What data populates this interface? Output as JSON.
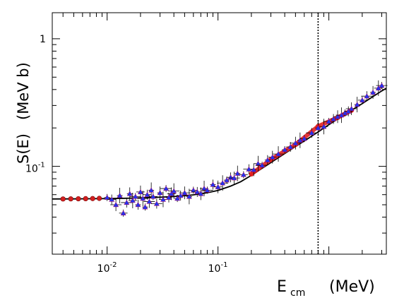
{
  "chart_data": {
    "type": "scatter",
    "title": "",
    "xlabel": {
      "main": "E",
      "sub": "cm",
      "unit": "(MeV)"
    },
    "ylabel": {
      "main": "S(E)",
      "unit": "(MeV b)"
    },
    "xscale": "log",
    "yscale": "log",
    "xlim": [
      0.0032,
      3.3
    ],
    "ylim": [
      0.0205,
      1.6
    ],
    "x_ticks": [
      {
        "value": 0.01,
        "base": "10",
        "exp": "-2"
      },
      {
        "value": 0.1,
        "base": "10",
        "exp": "-1"
      }
    ],
    "y_ticks": [
      {
        "value": 0.1,
        "base": "10",
        "exp": "-1"
      },
      {
        "value": 1,
        "label": "1"
      }
    ],
    "grid": false,
    "legend": "none",
    "vertical_line": {
      "x": 0.8,
      "style": "dotted"
    },
    "colors": {
      "fit_curve": "#000000",
      "red_band": "#e02020",
      "red_points": "#d42020",
      "blue_points": "#2233ee",
      "marker_edge": "#b00060"
    },
    "series": [
      {
        "marker": "red-circle",
        "x": [
          0.004,
          0.0047,
          0.0055,
          0.0064,
          0.0074,
          0.0085
        ],
        "y": [
          0.0555,
          0.0556,
          0.0557,
          0.0558,
          0.0559,
          0.0561
        ]
      },
      {
        "marker": "red-band",
        "x": [
          0.2,
          0.3,
          0.5,
          0.8,
          1.2,
          1.6
        ],
        "y": [
          0.087,
          0.113,
          0.148,
          0.206,
          0.241,
          0.275
        ]
      },
      {
        "marker": "blue-triangle",
        "x": [
          0.01,
          0.011,
          0.012,
          0.013,
          0.014,
          0.015,
          0.016,
          0.017,
          0.018,
          0.019,
          0.02,
          0.021,
          0.022,
          0.023,
          0.024,
          0.025,
          0.026,
          0.028,
          0.03,
          0.032,
          0.034,
          0.036,
          0.038,
          0.04,
          0.043,
          0.046,
          0.05,
          0.055,
          0.06,
          0.065,
          0.07,
          0.075,
          0.08,
          0.09,
          0.1,
          0.11,
          0.12,
          0.13,
          0.14,
          0.15,
          0.17,
          0.19,
          0.21,
          0.23,
          0.25,
          0.28,
          0.31,
          0.35,
          0.4,
          0.45,
          0.5,
          0.55,
          0.6,
          0.7,
          0.8,
          0.9,
          1.0,
          1.1,
          1.2,
          1.3,
          1.4,
          1.5,
          1.6,
          1.8,
          2.0,
          2.2,
          2.5,
          2.8,
          3.0
        ],
        "y": [
          0.057,
          0.055,
          0.05,
          0.059,
          0.043,
          0.052,
          0.061,
          0.054,
          0.058,
          0.05,
          0.063,
          0.056,
          0.048,
          0.06,
          0.053,
          0.065,
          0.058,
          0.051,
          0.062,
          0.055,
          0.067,
          0.057,
          0.061,
          0.064,
          0.056,
          0.059,
          0.062,
          0.058,
          0.065,
          0.063,
          0.061,
          0.067,
          0.065,
          0.072,
          0.069,
          0.074,
          0.078,
          0.082,
          0.081,
          0.088,
          0.086,
          0.095,
          0.094,
          0.105,
          0.102,
          0.112,
          0.118,
          0.125,
          0.135,
          0.142,
          0.152,
          0.16,
          0.165,
          0.183,
          0.2,
          0.205,
          0.225,
          0.235,
          0.245,
          0.252,
          0.262,
          0.27,
          0.283,
          0.305,
          0.33,
          0.355,
          0.38,
          0.41,
          0.43
        ]
      }
    ],
    "fit_curve": {
      "x": [
        0.0032,
        0.005,
        0.008,
        0.01,
        0.015,
        0.02,
        0.03,
        0.04,
        0.05,
        0.06,
        0.08,
        0.1,
        0.13,
        0.16,
        0.2,
        0.25,
        0.3,
        0.4,
        0.5,
        0.6,
        0.8,
        1.0,
        1.3,
        1.6,
        2.0,
        2.5,
        3.0,
        3.3
      ],
      "y": [
        0.0555,
        0.0556,
        0.0558,
        0.0559,
        0.0562,
        0.0566,
        0.0573,
        0.058,
        0.0589,
        0.0598,
        0.0621,
        0.0648,
        0.07,
        0.0758,
        0.085,
        0.0965,
        0.107,
        0.126,
        0.143,
        0.158,
        0.186,
        0.212,
        0.246,
        0.275,
        0.31,
        0.352,
        0.39,
        0.41
      ]
    }
  }
}
